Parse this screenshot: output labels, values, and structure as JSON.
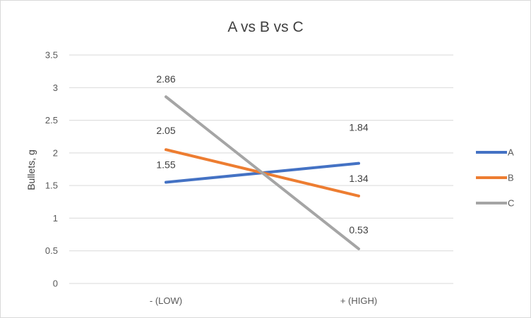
{
  "chart_data": {
    "type": "line",
    "title": "A vs B vs C",
    "xlabel": "",
    "ylabel": "Bullets, g",
    "categories": [
      "- (LOW)",
      "+ (HIGH)"
    ],
    "ylim": [
      0,
      3.5
    ],
    "yticks": [
      "0",
      "0.5",
      "1",
      "1.5",
      "2",
      "2.5",
      "3",
      "3.5"
    ],
    "grid": true,
    "legend_position": "right",
    "series": [
      {
        "name": "A",
        "color": "#4472c4",
        "values": [
          1.55,
          1.84
        ],
        "labels": [
          "1.55",
          "1.84"
        ]
      },
      {
        "name": "B",
        "color": "#ed7d31",
        "values": [
          2.05,
          1.34
        ],
        "labels": [
          "2.05",
          "1.34"
        ]
      },
      {
        "name": "C",
        "color": "#a5a5a5",
        "values": [
          2.86,
          0.53
        ],
        "labels": [
          "2.86",
          "0.53"
        ]
      }
    ]
  }
}
